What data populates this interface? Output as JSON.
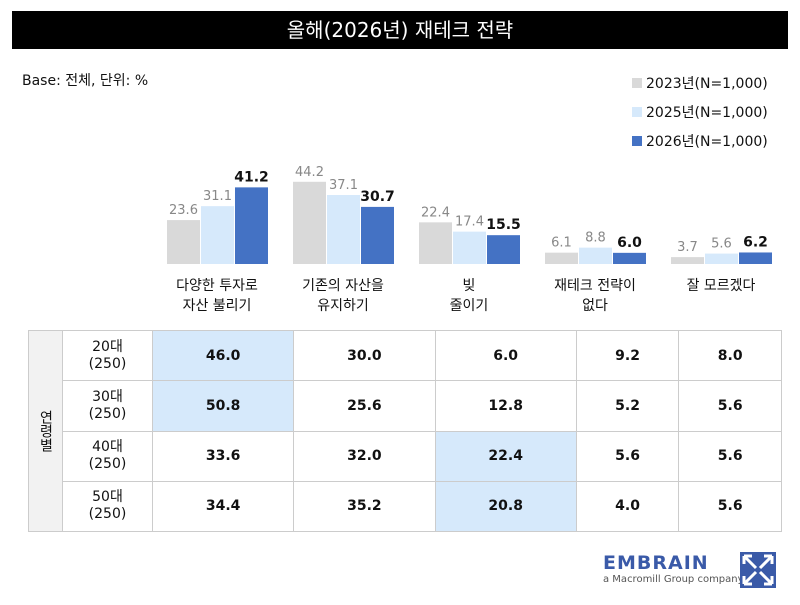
{
  "title": "올해(2026년) 재테크 전략",
  "base_note": "Base: 전체, 단위: %",
  "colors": {
    "2023": "#d9d9d9",
    "2025": "#d6e9fb",
    "2026": "#4472c4",
    "highlight": "#d6e9fb"
  },
  "chart_data": {
    "type": "bar",
    "categories": [
      "다양한 투자로\n자산 불리기",
      "기존의 자산을\n유지하기",
      "빚\n줄이기",
      "재테크 전략이\n없다",
      "잘 모르겠다"
    ],
    "series": [
      {
        "name": "2023년(N=1,000)",
        "values": [
          23.6,
          44.2,
          22.4,
          6.1,
          3.7
        ]
      },
      {
        "name": "2025년(N=1,000)",
        "values": [
          31.1,
          37.1,
          17.4,
          8.8,
          5.6
        ]
      },
      {
        "name": "2026년(N=1,000)",
        "values": [
          41.2,
          30.7,
          15.5,
          6.0,
          6.2
        ]
      }
    ],
    "legend": "top-right",
    "grid": false
  },
  "table": {
    "group_label": "연령별",
    "rows": [
      {
        "label": "20대\n(250)",
        "values": [
          "46.0",
          "30.0",
          "6.0",
          "9.2",
          "8.0"
        ],
        "highlight": [
          0
        ]
      },
      {
        "label": "30대\n(250)",
        "values": [
          "50.8",
          "25.6",
          "12.8",
          "5.2",
          "5.6"
        ],
        "highlight": [
          0
        ]
      },
      {
        "label": "40대\n(250)",
        "values": [
          "33.6",
          "32.0",
          "22.4",
          "5.6",
          "5.6"
        ],
        "highlight": [
          2
        ]
      },
      {
        "label": "50대\n(250)",
        "values": [
          "34.4",
          "35.2",
          "20.8",
          "4.0",
          "5.6"
        ],
        "highlight": [
          2
        ]
      }
    ]
  },
  "logo": {
    "brand": "EMBRAIN",
    "sub": "a Macromill Group company"
  }
}
